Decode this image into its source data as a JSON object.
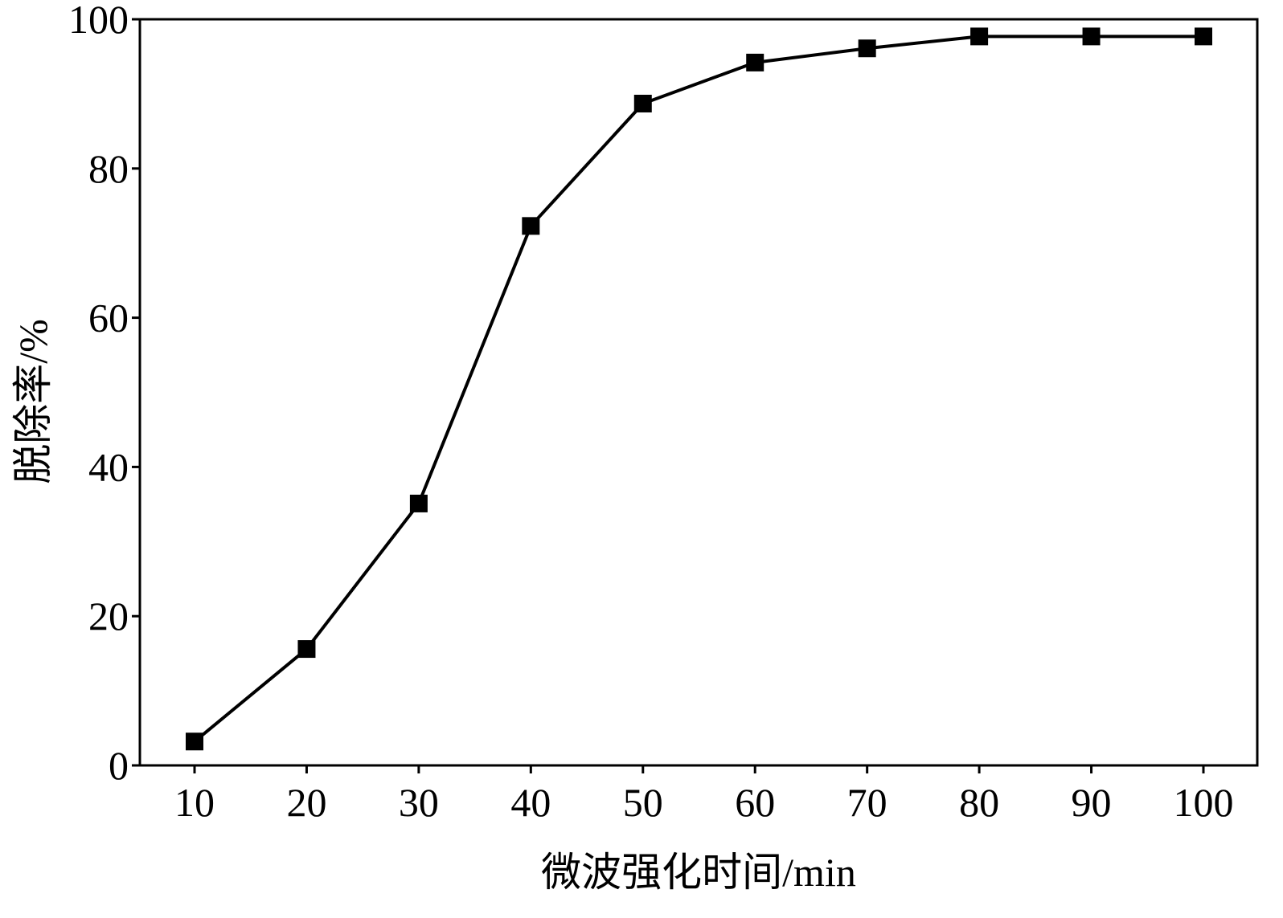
{
  "chart_data": {
    "type": "line",
    "title": "",
    "xlabel": "微波强化时间/min",
    "ylabel": "脱除率/%",
    "x": [
      10,
      20,
      30,
      40,
      50,
      60,
      70,
      80,
      90,
      100
    ],
    "series": [
      {
        "values": [
          3.2,
          15.6,
          35.1,
          72.3,
          88.7,
          94.2,
          96.1,
          97.7,
          97.7,
          97.7
        ]
      }
    ],
    "x_ticks": [
      "10",
      "20",
      "30",
      "40",
      "50",
      "60",
      "70",
      "80",
      "90",
      "100"
    ],
    "y_ticks": [
      "0",
      "20",
      "40",
      "60",
      "80",
      "100"
    ],
    "ylim": [
      0,
      100
    ],
    "marker": "square",
    "grid": false,
    "line_color": "#000000"
  }
}
